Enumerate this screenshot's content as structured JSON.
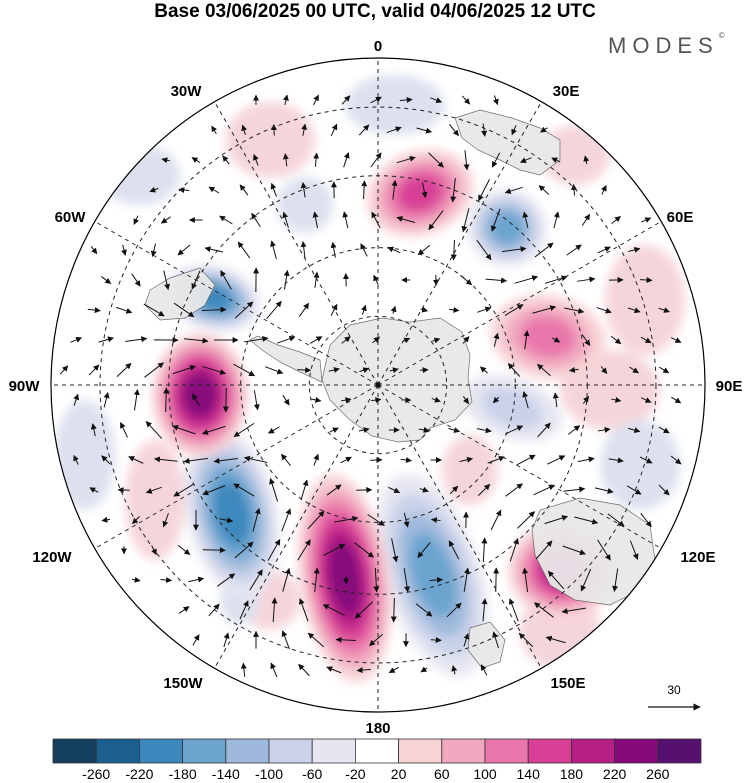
{
  "header": {
    "title": "Base 03/06/2025 00 UTC, valid 04/06/2025 12 UTC",
    "brand": "MODES",
    "brand_mark": "©"
  },
  "map": {
    "projection": "south-polar-stereographic",
    "longitude_labels": {
      "lon_0": "0",
      "lon_30e": "30E",
      "lon_60e": "60E",
      "lon_90e": "90E",
      "lon_120e": "120E",
      "lon_150e": "150E",
      "lon_180": "180",
      "lon_150w": "150W",
      "lon_120w": "120W",
      "lon_90w": "90W",
      "lon_60w": "60W",
      "lon_30w": "30W"
    },
    "wind_reference_label": "30",
    "anomaly_centers": [
      {
        "sign": "negative",
        "strength": 160,
        "lon": "170E"
      },
      {
        "sign": "positive",
        "strength": 240,
        "lon": "170W"
      },
      {
        "sign": "negative",
        "strength": 200,
        "lon": "145W"
      },
      {
        "sign": "positive",
        "strength": 250,
        "lon": "95W"
      },
      {
        "sign": "negative",
        "strength": 200,
        "lon": "60W"
      },
      {
        "sign": "positive",
        "strength": 200,
        "lon": "135E"
      },
      {
        "sign": "positive",
        "strength": 140,
        "lon": "15E"
      },
      {
        "sign": "negative",
        "strength": 150,
        "lon": "45E"
      },
      {
        "sign": "positive",
        "strength": 100,
        "lon": "80E"
      },
      {
        "sign": "negative",
        "strength": 80,
        "lon": "115E"
      }
    ]
  },
  "colorbar": {
    "labels": [
      "-260",
      "-220",
      "-180",
      "-140",
      "-100",
      "-60",
      "-20",
      "20",
      "60",
      "100",
      "140",
      "180",
      "220",
      "260"
    ],
    "colors": [
      "#15405f",
      "#1a5f8f",
      "#3c88bd",
      "#6aa4cf",
      "#9eb9dc",
      "#c9d2e9",
      "#e6e6f2",
      "#ffffff",
      "#f8d3d6",
      "#f1a9c0",
      "#e977ab",
      "#d83f96",
      "#b51f86",
      "#870a7c",
      "#561070"
    ]
  }
}
